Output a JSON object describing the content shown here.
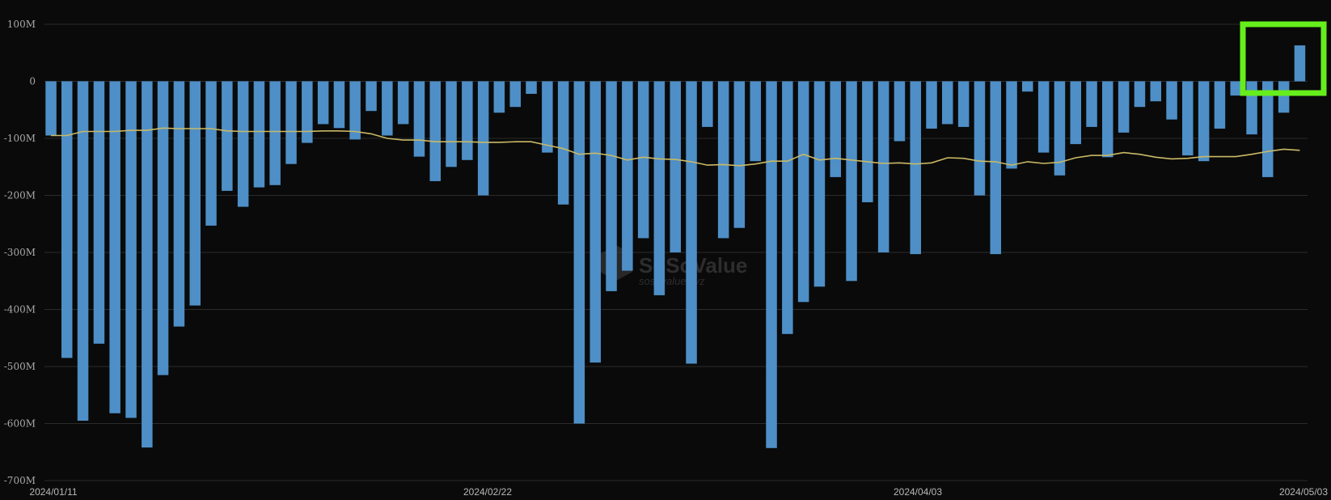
{
  "watermark": {
    "brand": "SoSoValue",
    "url": "sosovalue.xyz"
  },
  "highlight_color": "#66ee1c",
  "colors": {
    "bar": "#4e8fc7",
    "average_line": "#c9b966",
    "background": "#0a0a0a"
  },
  "chart_data": {
    "type": "bar",
    "title": "",
    "xlabel": "",
    "ylabel": "",
    "ylim": [
      -700,
      100
    ],
    "unit": "M",
    "grid": true,
    "legend": "none",
    "y_ticks": [
      "100M",
      "0",
      "-100M",
      "-200M",
      "-300M",
      "-400M",
      "-500M",
      "-600M",
      "-700M"
    ],
    "x_ticks": [
      "2024/01/11",
      "2024/02/22",
      "2024/04/03",
      "2024/05/03"
    ],
    "values": [
      -95,
      -485,
      -595,
      -460,
      -582,
      -590,
      -642,
      -515,
      -430,
      -393,
      -253,
      -192,
      -220,
      -186,
      -182,
      -145,
      -108,
      -75,
      -82,
      -102,
      -52,
      -95,
      -75,
      -132,
      -175,
      -150,
      -138,
      -200,
      -55,
      -45,
      -22,
      -125,
      -216,
      -600,
      -493,
      -368,
      -332,
      -275,
      -375,
      -300,
      -495,
      -80,
      -275,
      -257,
      -140,
      -643,
      -443,
      -387,
      -360,
      -168,
      -350,
      -212,
      -300,
      -105,
      -303,
      -83,
      -75,
      -80,
      -200,
      -303,
      -153,
      -18,
      -125,
      -165,
      -110,
      -80,
      -133,
      -90,
      -45,
      -35,
      -67,
      -130,
      -140,
      -83,
      -25,
      -93,
      -168,
      -55,
      63
    ],
    "series": [
      {
        "values": [
          -95,
          -95,
          -88,
          -88,
          -88,
          -86,
          -86,
          -82,
          -83,
          -83,
          -83,
          -87,
          -88,
          -88,
          -88,
          -88,
          -88,
          -87,
          -87,
          -88,
          -92,
          -100,
          -103,
          -103,
          -106,
          -106,
          -106,
          -107,
          -107,
          -106,
          -106,
          -112,
          -118,
          -128,
          -126,
          -130,
          -138,
          -133,
          -136,
          -137,
          -141,
          -147,
          -146,
          -148,
          -145,
          -140,
          -140,
          -128,
          -138,
          -135,
          -138,
          -141,
          -144,
          -143,
          -145,
          -143,
          -134,
          -135,
          -140,
          -141,
          -147,
          -141,
          -144,
          -142,
          -134,
          -130,
          -130,
          -125,
          -128,
          -133,
          -136,
          -135,
          -132,
          -132,
          -132,
          -128,
          -123,
          -119,
          -121
        ]
      }
    ]
  }
}
